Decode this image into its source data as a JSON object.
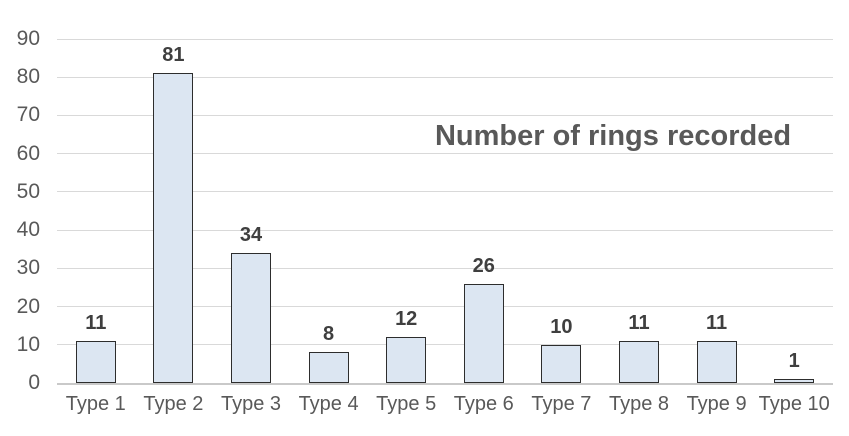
{
  "chart_data": {
    "type": "bar",
    "title": "Number of rings recorded",
    "categories": [
      "Type 1",
      "Type 2",
      "Type 3",
      "Type 4",
      "Type 5",
      "Type 6",
      "Type 7",
      "Type 8",
      "Type 9",
      "Type 10"
    ],
    "values": [
      11,
      81,
      34,
      8,
      12,
      26,
      10,
      11,
      11,
      1
    ],
    "data_labels": [
      11,
      81,
      34,
      8,
      12,
      26,
      10,
      11,
      11,
      1
    ],
    "xlabel": "",
    "ylabel": "",
    "ylim": [
      0,
      90
    ],
    "ytick_step": 10,
    "ytick_labels": [
      "0",
      "10",
      "20",
      "30",
      "40",
      "50",
      "60",
      "70",
      "80",
      "90"
    ],
    "grid": true,
    "legend_position": "none",
    "colors": {
      "background": "#ffffff",
      "bar_fill": "#dce6f2",
      "bar_border": "#2d2d2d",
      "gridline": "#d9d9d9",
      "axis_line": "#c9c9c9",
      "tick_label": "#595959",
      "data_label": "#3f3f3f",
      "title": "#595959"
    }
  }
}
